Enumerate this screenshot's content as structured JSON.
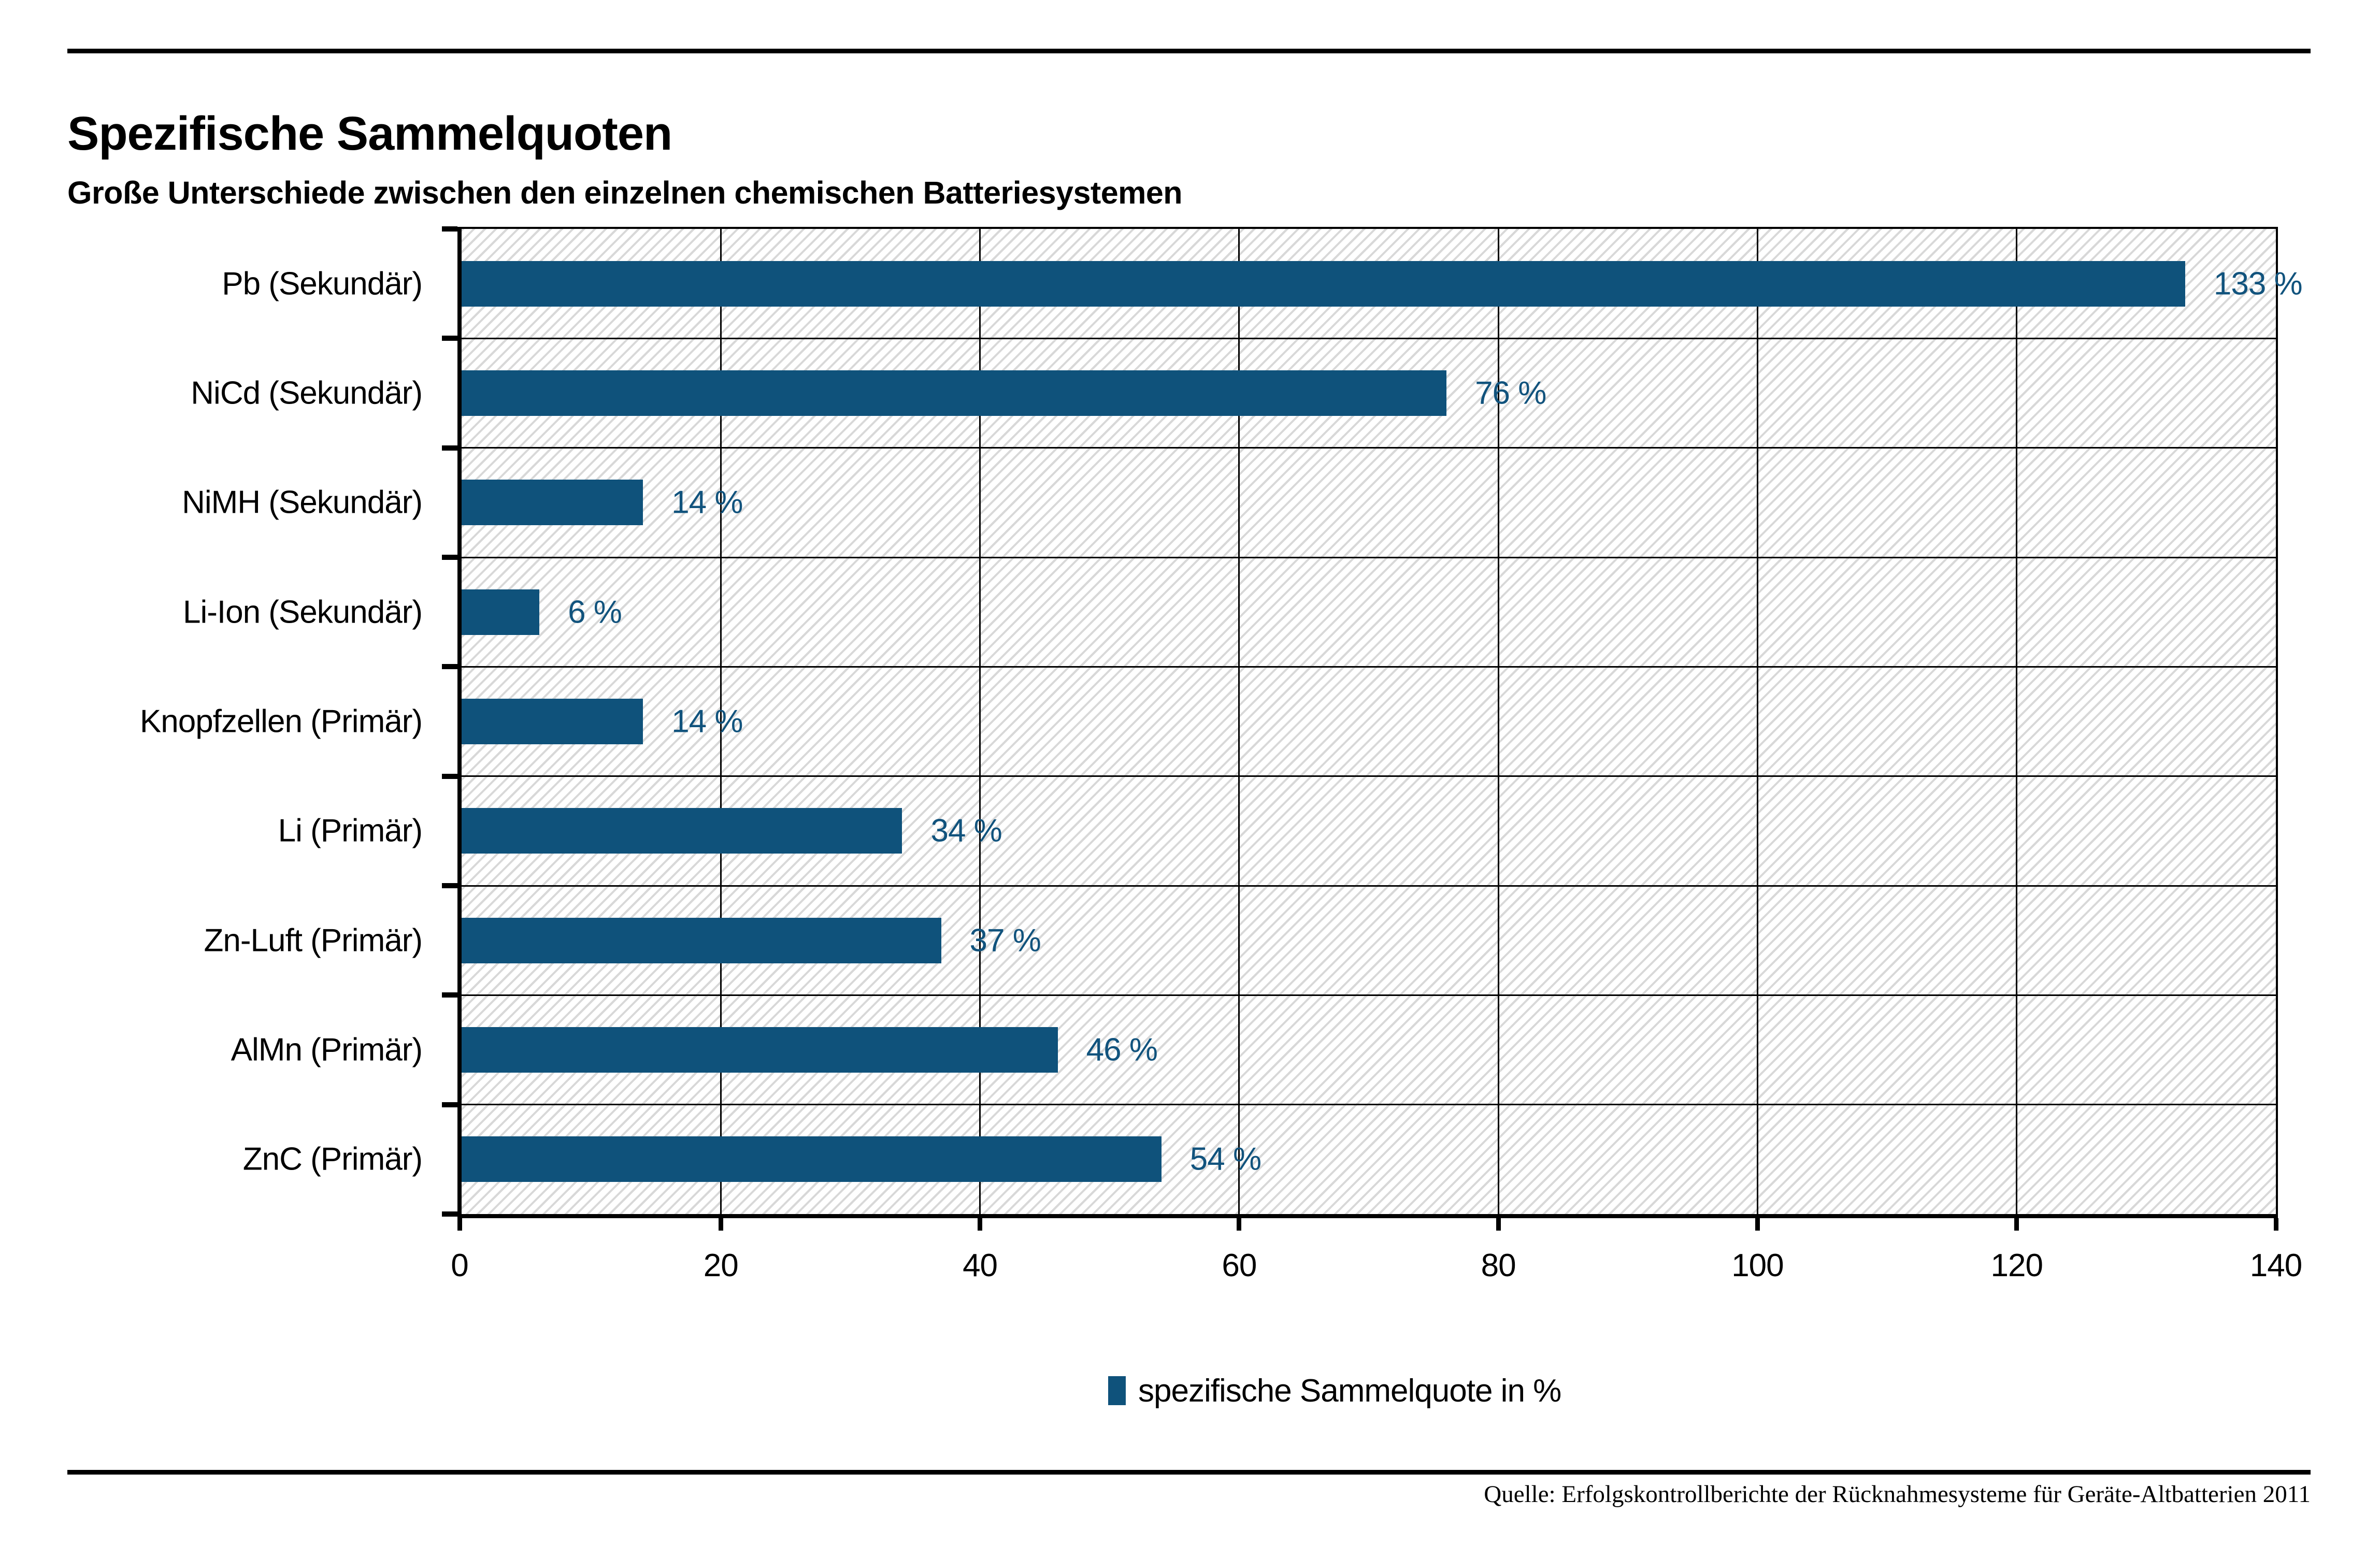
{
  "page": {
    "title": "Spezifische Sammelquoten",
    "subtitle": "Große Unterschiede zwischen den einzelnen chemischen Batteriesystemen",
    "source": "Quelle: Erfolgskontrollberichte der Rücknahmesysteme für Geräte-Altbatterien 2011"
  },
  "legend": {
    "label": "spezifische Sammelquote in %"
  },
  "colors": {
    "bar": "#0F527B",
    "value_label": "#11537D",
    "axis_and_grid": "#000000",
    "hatch_line": "#D8D8D8",
    "background": "#FFFFFF"
  },
  "chart_data": {
    "type": "bar",
    "orientation": "horizontal",
    "title": "Spezifische Sammelquoten",
    "subtitle": "Große Unterschiede zwischen den einzelnen chemischen Batteriesystemen",
    "categories": [
      "Pb (Sekundär)",
      "NiCd (Sekundär)",
      "NiMH (Sekundär)",
      "Li-Ion (Sekundär)",
      "Knopfzellen (Primär)",
      "Li (Primär)",
      "Zn-Luft (Primär)",
      "AlMn (Primär)",
      "ZnC (Primär)"
    ],
    "values": [
      133,
      76,
      14,
      6,
      14,
      34,
      37,
      46,
      54
    ],
    "value_labels": [
      "133 %",
      "76 %",
      "14 %",
      "6 %",
      "14 %",
      "34 %",
      "37 %",
      "46 %",
      "54 %"
    ],
    "xlabel": "",
    "ylabel": "",
    "xlim": [
      0,
      140
    ],
    "xticks": [
      0,
      20,
      40,
      60,
      80,
      100,
      120,
      140
    ],
    "grid": "vertical-at-every-20-plus-row-separators",
    "plot_background": "diagonal-hatch",
    "legend_position": "bottom-center",
    "legend": [
      "spezifische Sammelquote in %"
    ],
    "source": "Quelle: Erfolgskontrollberichte der Rücknahmesysteme für Geräte-Altbatterien 2011"
  }
}
